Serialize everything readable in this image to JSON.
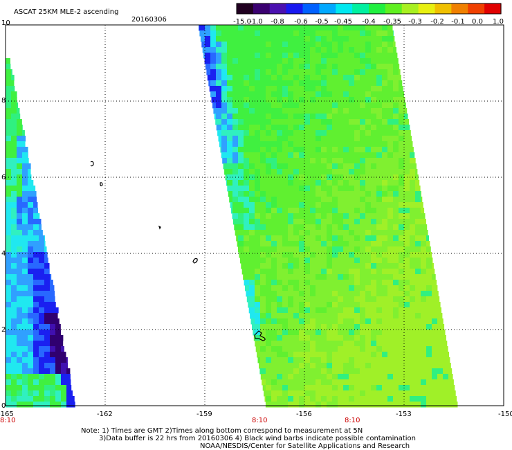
{
  "header": {
    "title": "ASCAT 25KM MLE-2 ascending",
    "date": "20160306"
  },
  "colorbar": {
    "labels": [
      "-15.0",
      "-1.0",
      "-0.8",
      "-0.6",
      "-0.5",
      "-0.45",
      "-0.4",
      "-0.35",
      "-0.3",
      "-0.2",
      "-0.1",
      "0.0",
      "1.0"
    ],
    "colors": [
      "#200020",
      "#3a0070",
      "#4a10b0",
      "#1818f0",
      "#0060ff",
      "#00a8ff",
      "#00e8f0",
      "#00f0a0",
      "#20f040",
      "#60f020",
      "#a8f020",
      "#e8f010",
      "#f0c000",
      "#f08000",
      "#f04000",
      "#e00000"
    ]
  },
  "axes": {
    "lat_ticks": [
      "0",
      "2",
      "4",
      "6",
      "8",
      "10"
    ],
    "lon_ticks": [
      "-165",
      "-162",
      "-159",
      "-156",
      "-153",
      "-150"
    ]
  },
  "time_labels": [
    "8:10",
    "8:10",
    "8:10"
  ],
  "notes": [
    "Note: 1) Times are GMT 2)Times along bottom correspond to measurement at 5N",
    "3)Data buffer is 22 hrs from 20160306 4) Black wind barbs indicate possible contamination",
    "NOAA/NESDIS/Center for Satellite Applications and Research"
  ]
}
